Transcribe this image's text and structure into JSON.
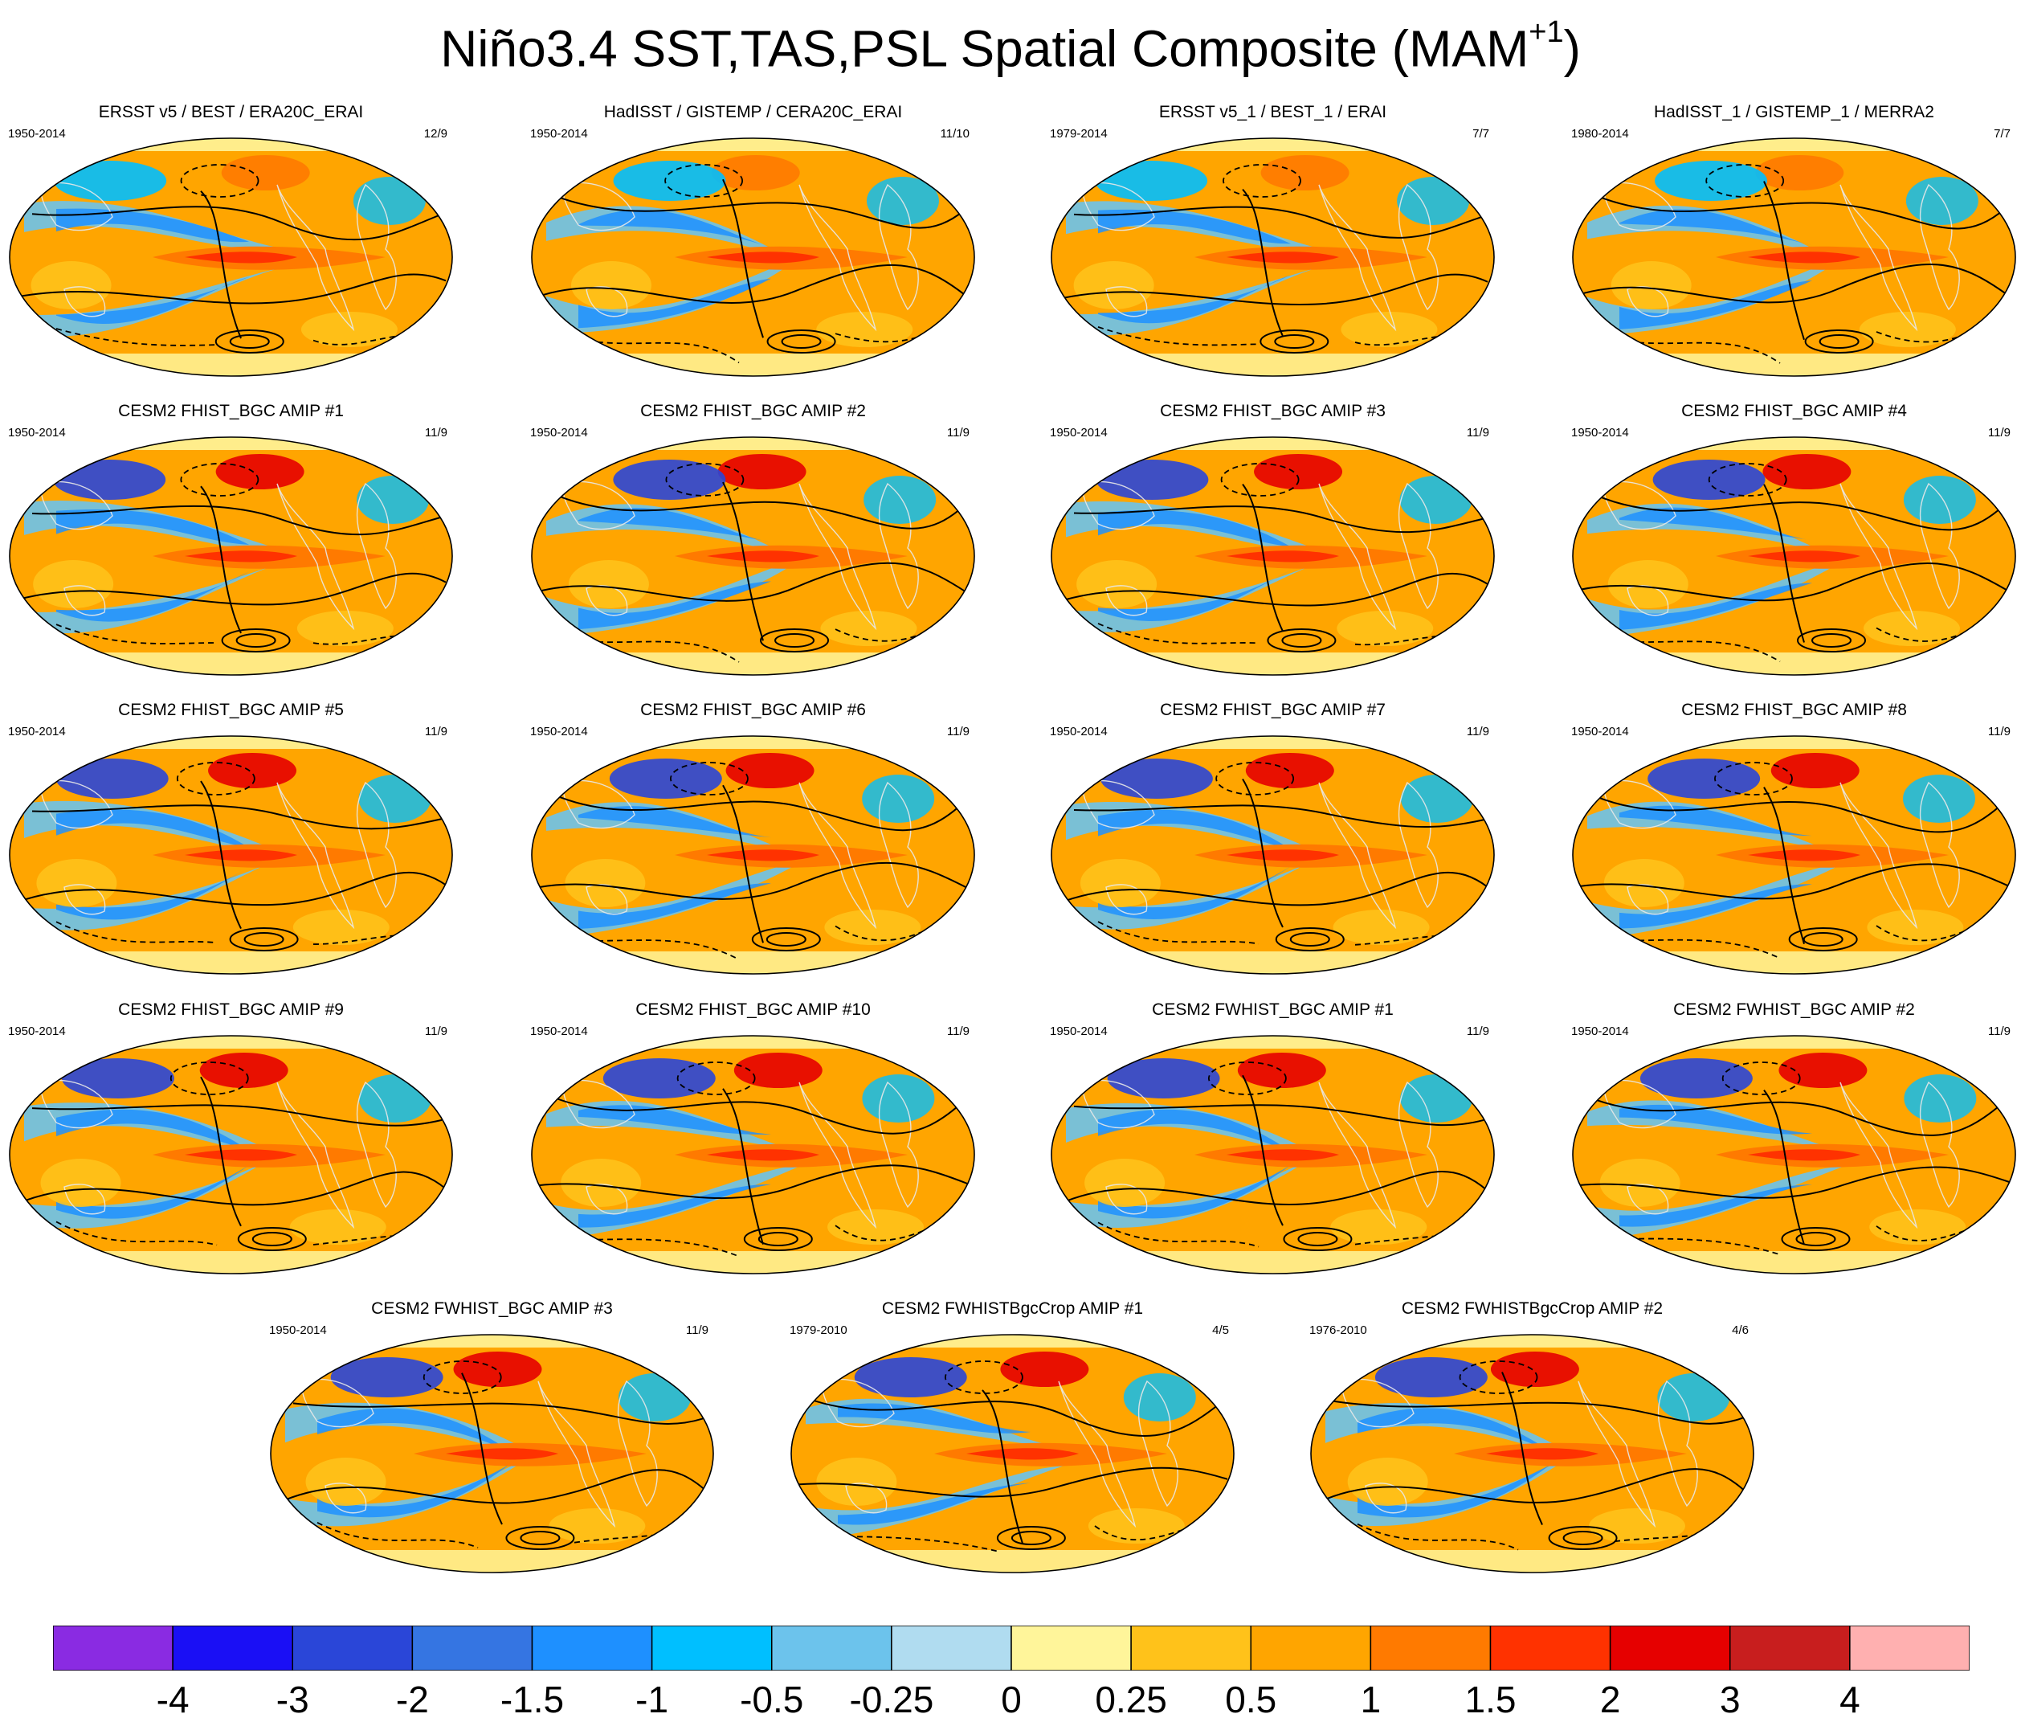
{
  "title": "Niño3.4 SST,TAS,PSL Spatial Composite (MAM",
  "title_sup": "+1",
  "title_close": ")",
  "chart_data": {
    "type": "map-composite-panels",
    "title": "Niño3.4 SST,TAS,PSL Spatial Composite (MAM+1)",
    "panels": [
      {
        "name": "ERSST v5 / BEST / ERA20C_ERAI",
        "years": "1950-2014",
        "count": "12/9"
      },
      {
        "name": "HadISST / GISTEMP / CERA20C_ERAI",
        "years": "1950-2014",
        "count": "11/10"
      },
      {
        "name": "ERSST v5_1 / BEST_1 / ERAI",
        "years": "1979-2014",
        "count": "7/7"
      },
      {
        "name": "HadISST_1 / GISTEMP_1 / MERRA2",
        "years": "1980-2014",
        "count": "7/7"
      },
      {
        "name": "CESM2 FHIST_BGC AMIP #1",
        "years": "1950-2014",
        "count": "11/9"
      },
      {
        "name": "CESM2 FHIST_BGC AMIP #2",
        "years": "1950-2014",
        "count": "11/9"
      },
      {
        "name": "CESM2 FHIST_BGC AMIP #3",
        "years": "1950-2014",
        "count": "11/9"
      },
      {
        "name": "CESM2 FHIST_BGC AMIP #4",
        "years": "1950-2014",
        "count": "11/9"
      },
      {
        "name": "CESM2 FHIST_BGC AMIP #5",
        "years": "1950-2014",
        "count": "11/9"
      },
      {
        "name": "CESM2 FHIST_BGC AMIP #6",
        "years": "1950-2014",
        "count": "11/9"
      },
      {
        "name": "CESM2 FHIST_BGC AMIP #7",
        "years": "1950-2014",
        "count": "11/9"
      },
      {
        "name": "CESM2 FHIST_BGC AMIP #8",
        "years": "1950-2014",
        "count": "11/9"
      },
      {
        "name": "CESM2 FHIST_BGC AMIP #9",
        "years": "1950-2014",
        "count": "11/9"
      },
      {
        "name": "CESM2 FHIST_BGC AMIP #10",
        "years": "1950-2014",
        "count": "11/9"
      },
      {
        "name": "CESM2 FWHIST_BGC AMIP #1",
        "years": "1950-2014",
        "count": "11/9"
      },
      {
        "name": "CESM2 FWHIST_BGC AMIP #2",
        "years": "1950-2014",
        "count": "11/9"
      },
      {
        "name": "CESM2 FWHIST_BGC AMIP #3",
        "years": "1950-2014",
        "count": "11/9"
      },
      {
        "name": "CESM2 FWHISTBgcCrop AMIP #1",
        "years": "1979-2010",
        "count": "4/5"
      },
      {
        "name": "CESM2 FWHISTBgcCrop AMIP #2",
        "years": "1976-2010",
        "count": "4/6"
      }
    ],
    "colorbar": {
      "labels": [
        "-4",
        "-3",
        "-2",
        "-1.5",
        "-1",
        "-0.5",
        "-0.25",
        "0",
        "0.25",
        "0.5",
        "1",
        "1.5",
        "2",
        "3",
        "4"
      ],
      "colors": [
        "#8a2be2",
        "#1a0ff5",
        "#2a46d8",
        "#3575e2",
        "#1e90ff",
        "#00bfff",
        "#6cc3ec",
        "#b0dcf0",
        "#fff59a",
        "#ffc21a",
        "#ffa500",
        "#ff7a00",
        "#ff3200",
        "#e60000",
        "#c81e1e",
        "#ffb0b0"
      ]
    }
  }
}
